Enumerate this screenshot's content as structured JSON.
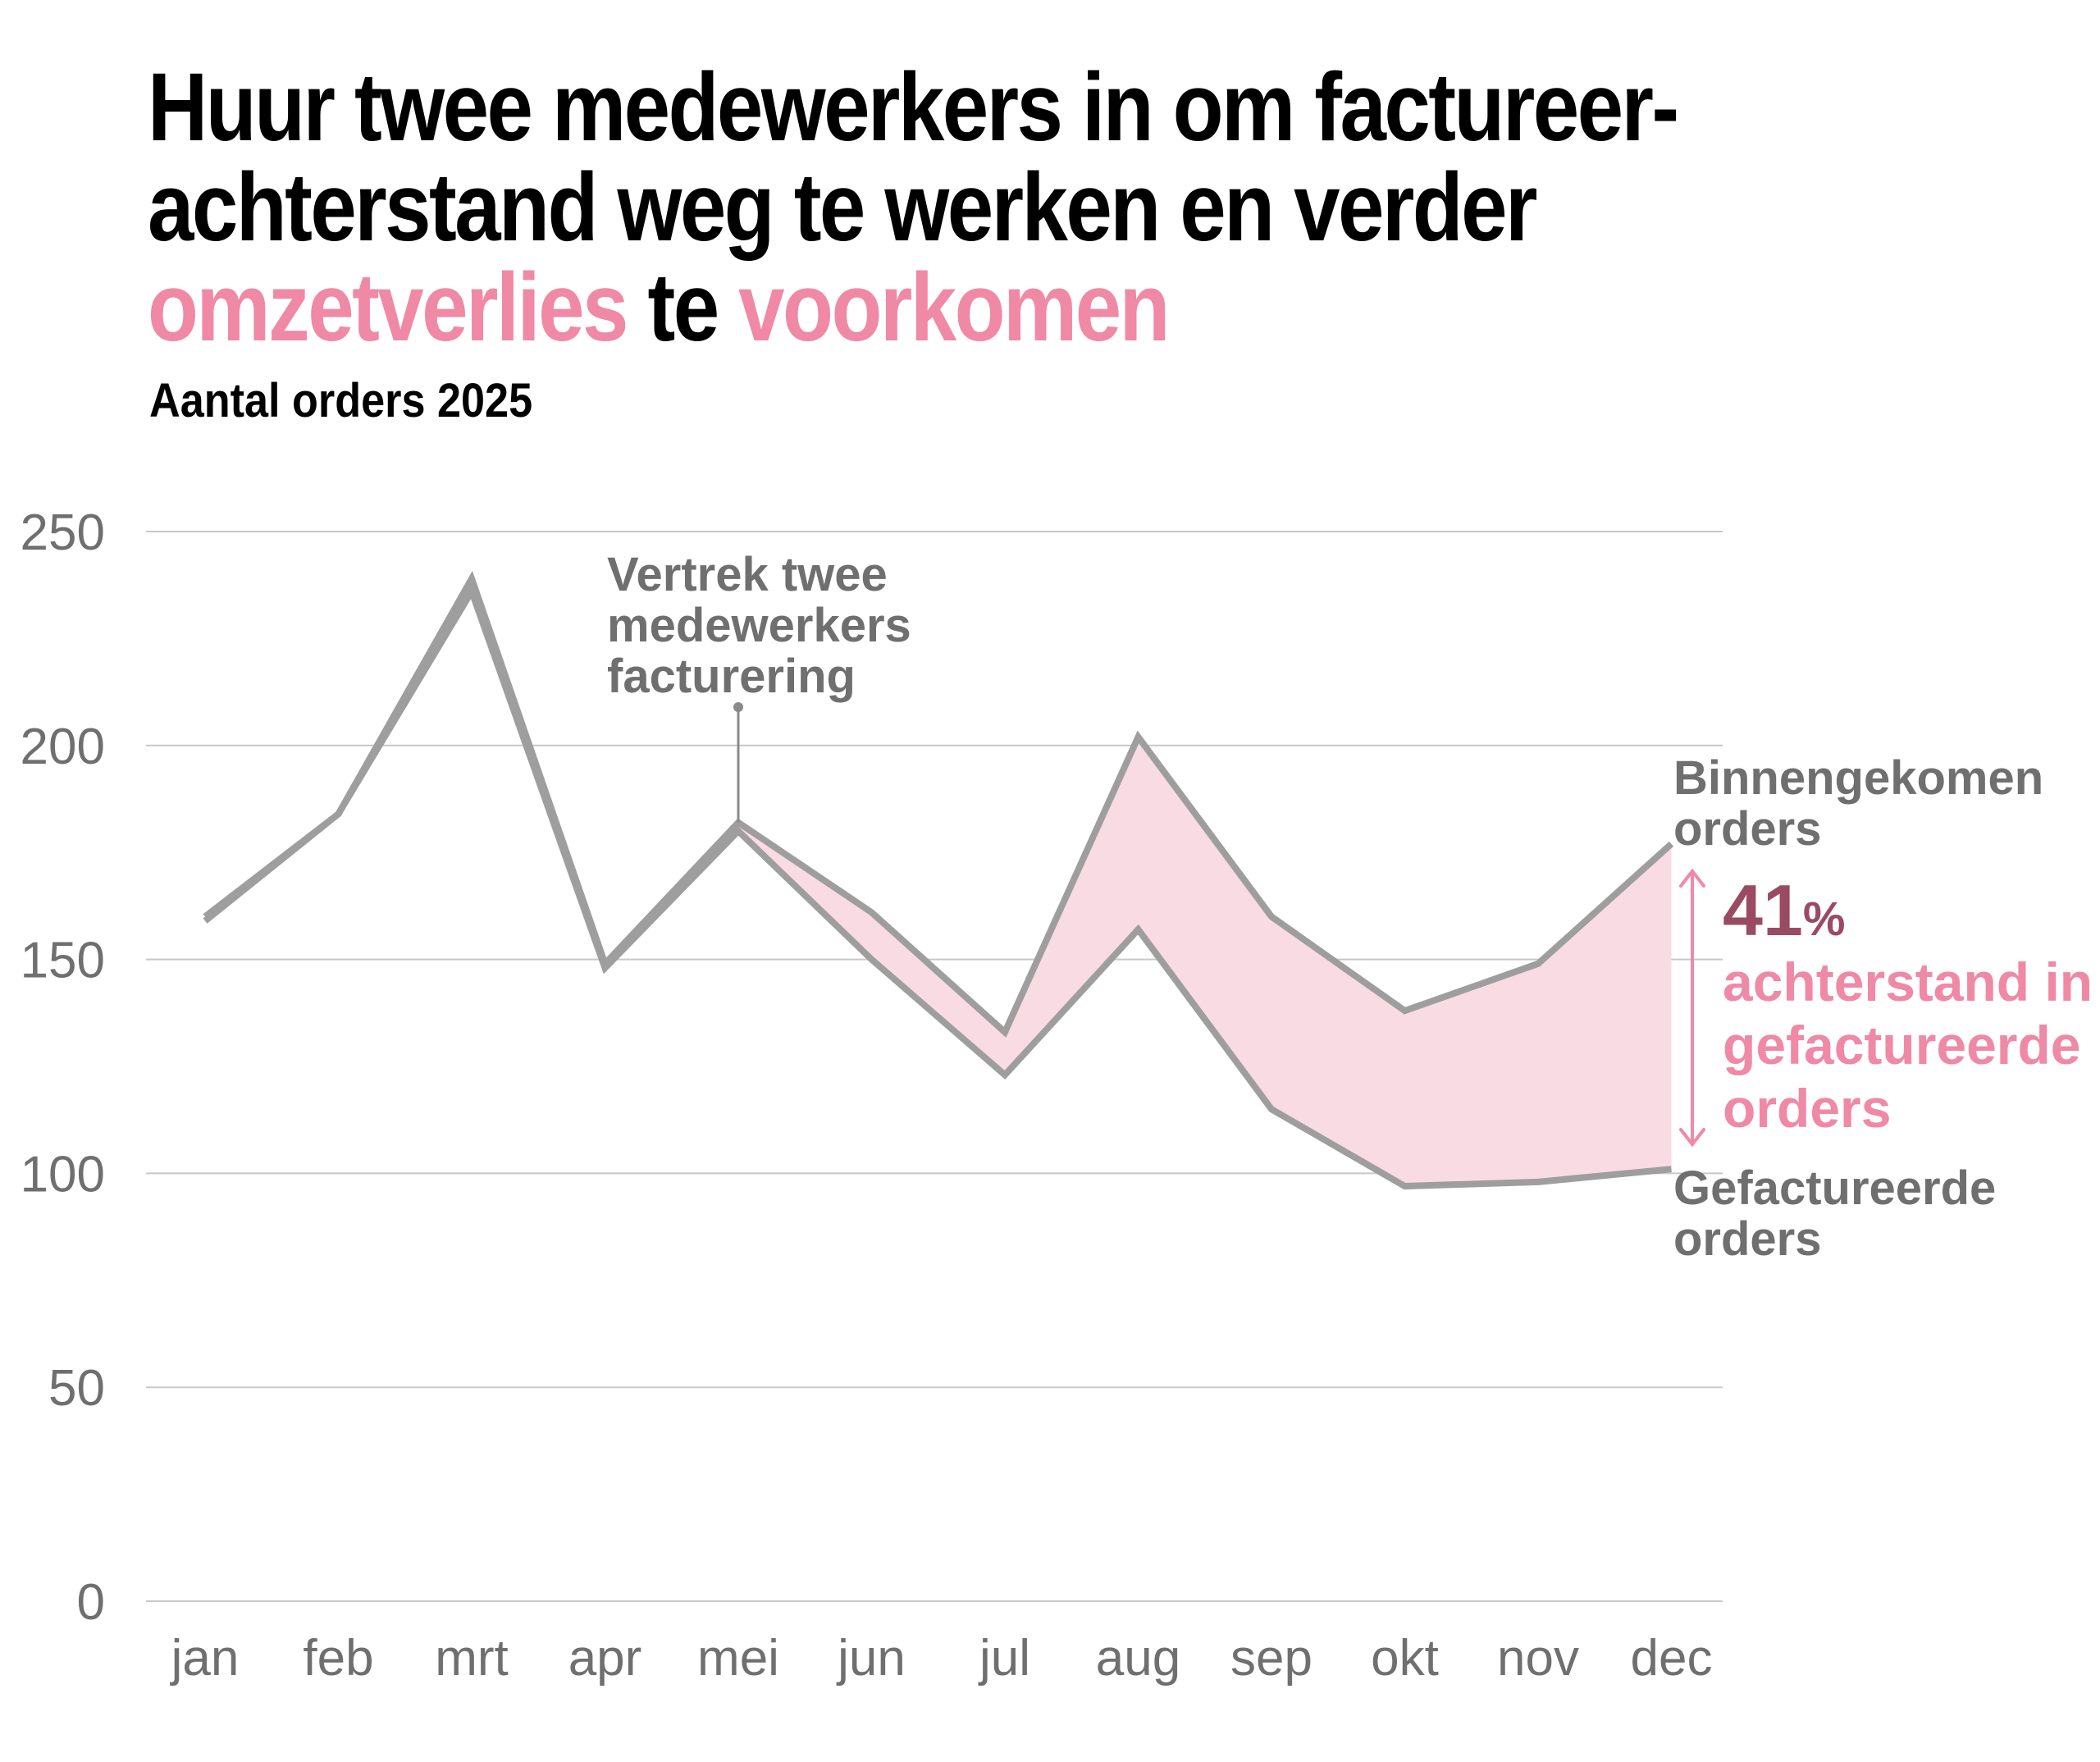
{
  "title": {
    "line1": "Huur twee medewerkers in om factureer-",
    "line2": "achterstand weg te werken en verder",
    "part_a": "omzetverlies",
    "part_b": " te ",
    "part_c": "voorkomen"
  },
  "subtitle": "Aantal orders 2025",
  "colors": {
    "line": "#9e9e9e",
    "fill": "#f9dbe4",
    "accent": "#ef89a6",
    "percent": "#9a4b63",
    "grid": "#c8c8c8",
    "text": "#6f6f6f"
  },
  "annotation": {
    "lines": [
      "Vertrek twee",
      "medewerkers",
      "facturering"
    ],
    "month": "mei"
  },
  "series_labels": {
    "incoming": [
      "Binnengekomen",
      "orders"
    ],
    "invoiced": [
      "Gefactureerde",
      "orders"
    ]
  },
  "backlog": {
    "value": "41",
    "unit": "%",
    "lines": [
      "achterstand in",
      "gefactureerde",
      "orders"
    ]
  },
  "chart_data": {
    "type": "line",
    "categories": [
      "jan",
      "feb",
      "mrt",
      "apr",
      "mei",
      "jun",
      "jul",
      "aug",
      "sep",
      "okt",
      "nov",
      "dec"
    ],
    "series": [
      {
        "name": "Binnengekomen orders",
        "values": [
          160,
          184,
          239,
          149,
          182,
          161,
          133,
          202,
          160,
          138,
          149,
          177
        ]
      },
      {
        "name": "Gefactureerde orders",
        "values": [
          159,
          184,
          236,
          148,
          180,
          150,
          123,
          157,
          115,
          97,
          98,
          101
        ]
      }
    ],
    "ylim": [
      0,
      250
    ],
    "yticks": [
      0,
      50,
      100,
      150,
      200,
      250
    ],
    "xlabel": "",
    "ylabel": "",
    "grid": true,
    "shaded_gap_from": "mei"
  }
}
